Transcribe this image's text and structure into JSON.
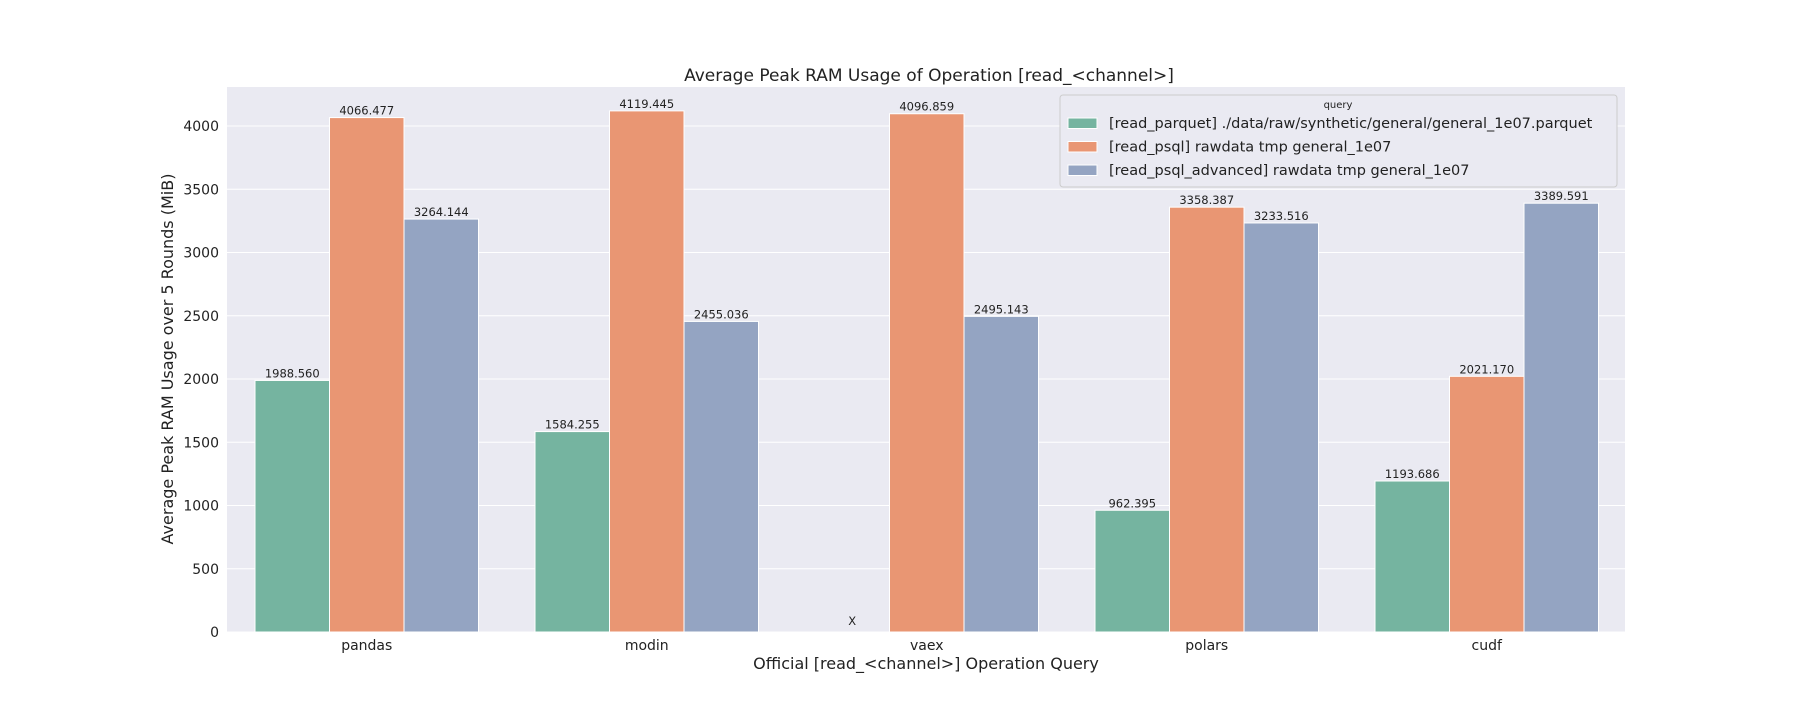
{
  "chart_data": {
    "type": "bar",
    "title": "Average Peak RAM Usage of Operation [read_<channel>]",
    "xlabel": "Official [read_<channel>] Operation Query",
    "ylabel": "Average Peak RAM Usage over 5 Rounds (MiB)",
    "categories": [
      "pandas",
      "modin",
      "vaex",
      "polars",
      "cudf"
    ],
    "ylim": [
      0,
      4350
    ],
    "yticks": [
      0,
      500,
      1000,
      1500,
      2000,
      2500,
      3000,
      3500,
      4000
    ],
    "grid": true,
    "legend": {
      "title": "query",
      "placement": "top-right"
    },
    "series": [
      {
        "name": "[read_parquet] ./data/raw/synthetic/general/general_1e07.parquet",
        "color": "#75b4a0",
        "values": [
          1988.56,
          1584.255,
          null,
          962.395,
          1193.686
        ],
        "labels": [
          "1988.560",
          "1584.255",
          "X",
          "962.395",
          "1193.686"
        ]
      },
      {
        "name": "[read_psql] rawdata tmp general_1e07",
        "color": "#e99673",
        "values": [
          4066.477,
          4119.445,
          4096.859,
          3358.387,
          2021.17
        ],
        "labels": [
          "4066.477",
          "4119.445",
          "4096.859",
          "3358.387",
          "2021.170"
        ]
      },
      {
        "name": "[read_psql_advanced] rawdata tmp general_1e07",
        "color": "#94a4c2",
        "values": [
          3264.144,
          2455.036,
          2495.143,
          3233.516,
          3389.591
        ],
        "labels": [
          "3264.144",
          "2455.036",
          "2495.143",
          "3233.516",
          "3389.591"
        ]
      }
    ]
  }
}
